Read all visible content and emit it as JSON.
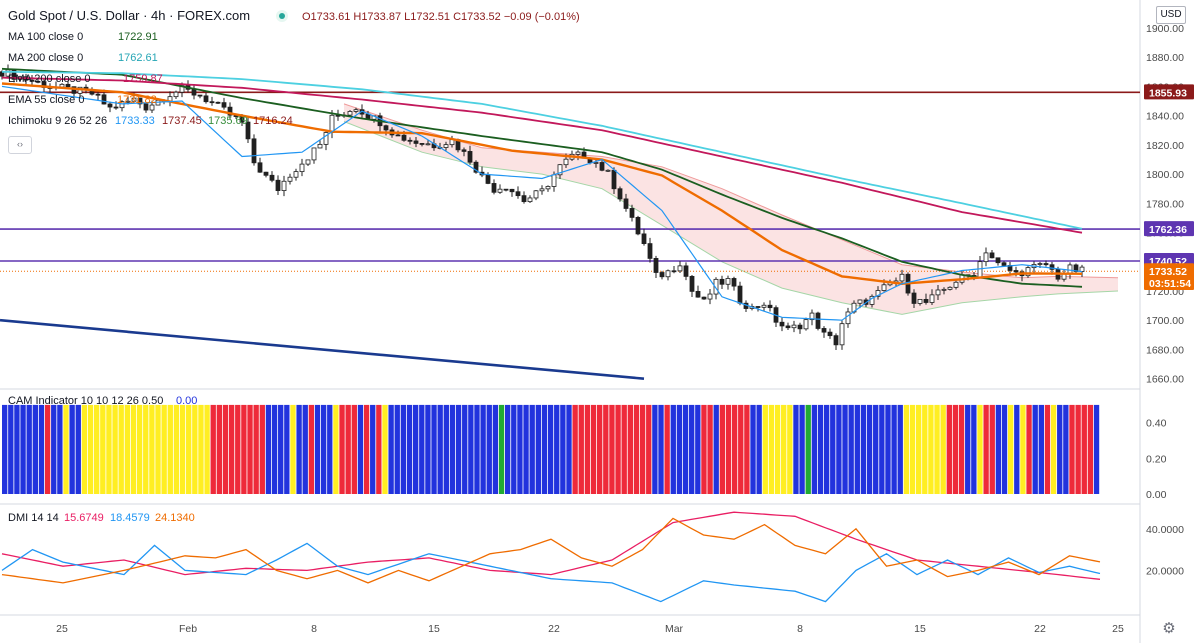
{
  "header": {
    "symbol": "Gold Spot / U.S. Dollar · 4h · FOREX.com",
    "ohlc": "O1733.61 H1733.87 L1732.51 C1733.52 −0.09 (−0.01%)"
  },
  "currency_button": "USD",
  "legend_button": "‹›",
  "settings_icon": "gear-icon",
  "indicators": [
    {
      "name": "MA 100 close 0",
      "value": "1722.91",
      "color": "#1b5e20"
    },
    {
      "name": "MA 200 close 0",
      "value": "1762.61",
      "color": "#4dd0e1"
    },
    {
      "name": "EMA 200 close 0",
      "value": "1759.87",
      "color": "#c2185b"
    },
    {
      "name": "EMA 55 close 0",
      "value": "1731.82",
      "color": "#ef6c00"
    },
    {
      "name": "Ichimoku 9 26 52 26",
      "values": [
        "1733.33",
        "1737.45",
        "1735.69",
        "1716.24"
      ],
      "colors": [
        "#2196f3",
        "#8b1a1a",
        "#388e3c",
        "#8b1a1a"
      ]
    }
  ],
  "cam": {
    "name": "CAM Indicator 10 10 12 26 0.50",
    "value": "0.00"
  },
  "dmi": {
    "name": "DMI 14 14",
    "values": [
      "15.6749",
      "18.4579",
      "24.1340"
    ],
    "colors": [
      "#e91e63",
      "#2196f3",
      "#ef6c00"
    ]
  },
  "price_tags": [
    {
      "label": "1855.93",
      "value": 1855.93,
      "color": "#8b1a1a"
    },
    {
      "label": "1762.36",
      "value": 1762.36,
      "color": "#5e35b1"
    },
    {
      "label": "1740.52",
      "value": 1740.52,
      "color": "#5e35b1"
    },
    {
      "label": "1733.52",
      "value": 1733.52,
      "color": "#ef6c00"
    },
    {
      "label": "03:51:54",
      "value": 1725.5,
      "color": "#ef6c00"
    }
  ],
  "chart_data": [
    {
      "type": "candlestick",
      "title": "Gold Spot / U.S. Dollar · 4h · FOREX.com",
      "ylim": [
        1655,
        1915
      ],
      "y_ticks": [
        "1900.00",
        "1880.00",
        "1860.00",
        "1840.00",
        "1820.00",
        "1800.00",
        "1780.00",
        "1760.00",
        "1740.00",
        "1720.00",
        "1700.00",
        "1680.00",
        "1660.00"
      ],
      "x_ticks": [
        "25",
        "Feb",
        "8",
        "15",
        "22",
        "Mar",
        "8",
        "15",
        "22",
        "25"
      ],
      "horizontal_lines": [
        1855.93,
        1762.36,
        1740.52
      ],
      "close_path": [
        [
          0,
          1870
        ],
        [
          8,
          1860
        ],
        [
          15,
          1855
        ],
        [
          18,
          1845
        ],
        [
          22,
          1851
        ],
        [
          24,
          1846
        ],
        [
          28,
          1855
        ],
        [
          30,
          1858
        ],
        [
          33,
          1854
        ],
        [
          36,
          1846
        ],
        [
          40,
          1835
        ],
        [
          42,
          1808
        ],
        [
          44,
          1798
        ],
        [
          46,
          1790
        ],
        [
          48,
          1800
        ],
        [
          50,
          1808
        ],
        [
          53,
          1820
        ],
        [
          55,
          1838
        ],
        [
          57,
          1842
        ],
        [
          59,
          1846
        ],
        [
          61,
          1840
        ],
        [
          63,
          1836
        ],
        [
          66,
          1826
        ],
        [
          69,
          1822
        ],
        [
          72,
          1820
        ],
        [
          75,
          1823
        ],
        [
          78,
          1810
        ],
        [
          80,
          1798
        ],
        [
          82,
          1790
        ],
        [
          84,
          1792
        ],
        [
          87,
          1782
        ],
        [
          90,
          1788
        ],
        [
          93,
          1805
        ],
        [
          95,
          1812
        ],
        [
          97,
          1813
        ],
        [
          99,
          1808
        ],
        [
          101,
          1800
        ],
        [
          103,
          1785
        ],
        [
          105,
          1768
        ],
        [
          107,
          1752
        ],
        [
          109,
          1730
        ],
        [
          111,
          1733
        ],
        [
          113,
          1740
        ],
        [
          115,
          1720
        ],
        [
          117,
          1712
        ],
        [
          119,
          1725
        ],
        [
          121,
          1727
        ],
        [
          123,
          1714
        ],
        [
          125,
          1708
        ],
        [
          127,
          1712
        ],
        [
          129,
          1700
        ],
        [
          131,
          1693
        ],
        [
          133,
          1697
        ],
        [
          135,
          1703
        ],
        [
          137,
          1690
        ],
        [
          139,
          1685
        ],
        [
          140,
          1698
        ],
        [
          142,
          1710
        ],
        [
          145,
          1715
        ],
        [
          148,
          1725
        ],
        [
          150,
          1729
        ],
        [
          152,
          1714
        ],
        [
          154,
          1712
        ],
        [
          156,
          1718
        ],
        [
          159,
          1727
        ],
        [
          162,
          1732
        ],
        [
          164,
          1748
        ],
        [
          166,
          1738
        ],
        [
          169,
          1732
        ],
        [
          172,
          1736
        ],
        [
          174,
          1738
        ],
        [
          176,
          1730
        ],
        [
          178,
          1735
        ],
        [
          180,
          1733.5
        ]
      ],
      "series": [
        {
          "name": "MA 100 close 0",
          "color": "#1b5e20",
          "points": [
            [
              0,
              1872
            ],
            [
              20,
              1868
            ],
            [
              40,
              1852
            ],
            [
              60,
              1838
            ],
            [
              80,
              1826
            ],
            [
              100,
              1815
            ],
            [
              110,
              1803
            ],
            [
              120,
              1786
            ],
            [
              130,
              1770
            ],
            [
              140,
              1756
            ],
            [
              150,
              1740
            ],
            [
              160,
              1731
            ],
            [
              170,
              1725
            ],
            [
              180,
              1722.9
            ]
          ]
        },
        {
          "name": "MA 200 close 0",
          "color": "#4dd0e1",
          "points": [
            [
              0,
              1870
            ],
            [
              20,
              1869
            ],
            [
              40,
              1865
            ],
            [
              60,
              1858
            ],
            [
              80,
              1848
            ],
            [
              100,
              1833
            ],
            [
              120,
              1815
            ],
            [
              140,
              1797
            ],
            [
              160,
              1780
            ],
            [
              180,
              1762.6
            ]
          ]
        },
        {
          "name": "EMA 200 close 0",
          "color": "#c2185b",
          "points": [
            [
              0,
              1866
            ],
            [
              20,
              1864
            ],
            [
              40,
              1859
            ],
            [
              60,
              1851
            ],
            [
              80,
              1842
            ],
            [
              100,
              1830
            ],
            [
              120,
              1812
            ],
            [
              140,
              1794
            ],
            [
              160,
              1774
            ],
            [
              180,
              1759.9
            ]
          ]
        },
        {
          "name": "EMA 55 close 0",
          "color": "#ef6c00",
          "points": [
            [
              0,
              1862
            ],
            [
              20,
              1856
            ],
            [
              40,
              1840
            ],
            [
              55,
              1829
            ],
            [
              70,
              1828
            ],
            [
              85,
              1816
            ],
            [
              100,
              1810
            ],
            [
              110,
              1799
            ],
            [
              120,
              1775
            ],
            [
              130,
              1748
            ],
            [
              140,
              1730
            ],
            [
              150,
              1725
            ],
            [
              160,
              1728
            ],
            [
              170,
              1732
            ],
            [
              180,
              1731.8
            ]
          ]
        },
        {
          "name": "Ichimoku 9 26 52 26",
          "color": "#2196f3",
          "points": [
            [
              0,
              1860
            ],
            [
              20,
              1848
            ],
            [
              30,
              1850
            ],
            [
              40,
              1812
            ],
            [
              50,
              1815
            ],
            [
              60,
              1843
            ],
            [
              70,
              1826
            ],
            [
              80,
              1800
            ],
            [
              90,
              1797
            ],
            [
              100,
              1810
            ],
            [
              110,
              1775
            ],
            [
              120,
              1716
            ],
            [
              130,
              1702
            ],
            [
              140,
              1700
            ],
            [
              145,
              1715
            ],
            [
              150,
              1725
            ],
            [
              160,
              1734
            ],
            [
              170,
              1738
            ],
            [
              180,
              1733.3
            ]
          ]
        }
      ],
      "cloud": [
        [
          57,
          1848,
          1836
        ],
        [
          70,
          1830,
          1815
        ],
        [
          80,
          1818,
          1805
        ],
        [
          90,
          1815,
          1800
        ],
        [
          100,
          1812,
          1790
        ],
        [
          110,
          1805,
          1765
        ],
        [
          120,
          1790,
          1740
        ],
        [
          130,
          1772,
          1722
        ],
        [
          140,
          1755,
          1712
        ],
        [
          150,
          1738,
          1704
        ],
        [
          160,
          1733,
          1712
        ],
        [
          170,
          1729,
          1716
        ],
        [
          176,
          1730,
          1718
        ],
        [
          186,
          1729,
          1720
        ]
      ],
      "support_trendline": [
        [
          0,
          1700
        ],
        [
          107,
          1660
        ]
      ]
    },
    {
      "type": "bar",
      "title": "CAM Indicator 10 10 12 26 0.50",
      "ylim": [
        0,
        0.55
      ],
      "y_ticks": [
        "0.40",
        "0.20",
        "0.00"
      ],
      "bar_value": 0.5,
      "color_key": {
        "B": "#2233dd",
        "R": "#ee2a3a",
        "G": "#22aa33",
        "Y": "#ffee22"
      },
      "bars": "BBBBBBBRBBYBBYYYYYYYYYYYYYYYYYYYYYRRRRRRRRRBBBBYBBRBBBYRRRBRBRYBBBBBBBBBBBBBBBBBBGBBBBBBBBBBBRRRRRRRRRRRRRBBRBBBBBRRBRRRRRBBYYYYYBBGBBBBBBBBBBBBBBBYYYYYYYRRRBBYRRBBYBYRBBRYBBRRRRB"
    },
    {
      "type": "line",
      "title": "DMI 14 14",
      "ylim": [
        0,
        50
      ],
      "y_ticks": [
        "40.0000",
        "20.0000"
      ],
      "series": [
        {
          "name": "15.6749",
          "color": "#e91e63",
          "points": [
            [
              0,
              28
            ],
            [
              10,
              22
            ],
            [
              20,
              25
            ],
            [
              30,
              18
            ],
            [
              40,
              21
            ],
            [
              50,
              20
            ],
            [
              60,
              24
            ],
            [
              70,
              26
            ],
            [
              80,
              20
            ],
            [
              90,
              18
            ],
            [
              100,
              25
            ],
            [
              110,
              43
            ],
            [
              120,
              48
            ],
            [
              130,
              46
            ],
            [
              140,
              35
            ],
            [
              150,
              25
            ],
            [
              160,
              22
            ],
            [
              170,
              19
            ],
            [
              180,
              15.7
            ]
          ]
        },
        {
          "name": "18.4579",
          "color": "#2196f3",
          "points": [
            [
              0,
              20
            ],
            [
              5,
              30
            ],
            [
              10,
              24
            ],
            [
              20,
              18
            ],
            [
              25,
              32
            ],
            [
              30,
              20
            ],
            [
              40,
              18
            ],
            [
              45,
              25
            ],
            [
              50,
              33
            ],
            [
              55,
              22
            ],
            [
              60,
              18
            ],
            [
              70,
              28
            ],
            [
              80,
              22
            ],
            [
              90,
              16
            ],
            [
              100,
              14
            ],
            [
              108,
              5
            ],
            [
              115,
              15
            ],
            [
              120,
              13
            ],
            [
              130,
              10
            ],
            [
              135,
              5
            ],
            [
              140,
              20
            ],
            [
              145,
              28
            ],
            [
              150,
              18
            ],
            [
              155,
              25
            ],
            [
              160,
              18
            ],
            [
              165,
              26
            ],
            [
              170,
              19
            ],
            [
              175,
              22
            ],
            [
              180,
              18.5
            ]
          ]
        },
        {
          "name": "24.1340",
          "color": "#ef6c00",
          "points": [
            [
              0,
              18
            ],
            [
              10,
              14
            ],
            [
              20,
              20
            ],
            [
              30,
              27
            ],
            [
              35,
              26
            ],
            [
              40,
              30
            ],
            [
              45,
              20
            ],
            [
              50,
              16
            ],
            [
              55,
              20
            ],
            [
              60,
              14
            ],
            [
              65,
              20
            ],
            [
              70,
              15
            ],
            [
              80,
              28
            ],
            [
              85,
              30
            ],
            [
              90,
              35
            ],
            [
              95,
              26
            ],
            [
              100,
              22
            ],
            [
              105,
              30
            ],
            [
              110,
              45
            ],
            [
              115,
              37
            ],
            [
              120,
              35
            ],
            [
              125,
              42
            ],
            [
              130,
              32
            ],
            [
              135,
              28
            ],
            [
              140,
              40
            ],
            [
              145,
              22
            ],
            [
              150,
              25
            ],
            [
              155,
              17
            ],
            [
              160,
              20
            ],
            [
              165,
              24
            ],
            [
              170,
              18
            ],
            [
              175,
              27
            ],
            [
              180,
              24.1
            ]
          ]
        }
      ]
    }
  ]
}
